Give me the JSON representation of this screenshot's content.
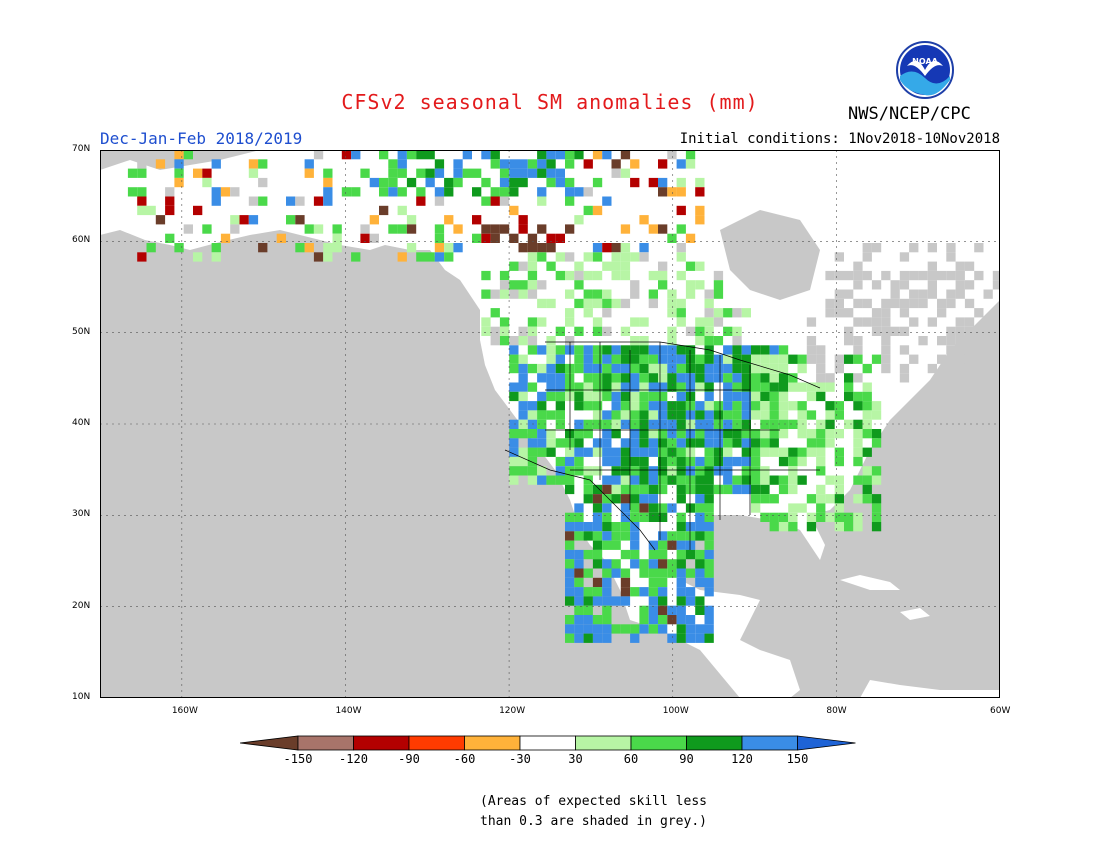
{
  "header": {
    "title": "CFSv2 seasonal SM anomalies (mm)",
    "season": "Dec-Jan-Feb 2018/2019",
    "initial_conditions": "Initial conditions: 1Nov2018-10Nov2018",
    "agency": "NWS/NCEP/CPC",
    "logo_text": "NOAA"
  },
  "axes": {
    "lat_labels": [
      "70N",
      "60N",
      "50N",
      "40N",
      "30N",
      "20N",
      "10N"
    ],
    "lon_labels": [
      "160W",
      "140W",
      "120W",
      "100W",
      "80W",
      "60W"
    ],
    "lat_range": [
      10,
      70
    ],
    "lon_range": [
      -170,
      -60
    ]
  },
  "colorbar": {
    "labels": [
      "-150",
      "-120",
      "-90",
      "-60",
      "-30",
      "30",
      "60",
      "90",
      "120",
      "150"
    ],
    "colors": [
      "#6a3d2a",
      "#a8746a",
      "#b30000",
      "#ff3b00",
      "#ffb23a",
      "#ffffff",
      "#b7f5a5",
      "#4ad94a",
      "#0f9a1d",
      "#3a8de6",
      "#1e63d6"
    ]
  },
  "map_colors": {
    "ocean": "#c8c8c8",
    "land": "#ffffff",
    "masked_grey": "#c8c8c8"
  },
  "note": {
    "line1": "(Areas of expected skill less",
    "line2": "than 0.3 are shaded in grey.)"
  }
}
